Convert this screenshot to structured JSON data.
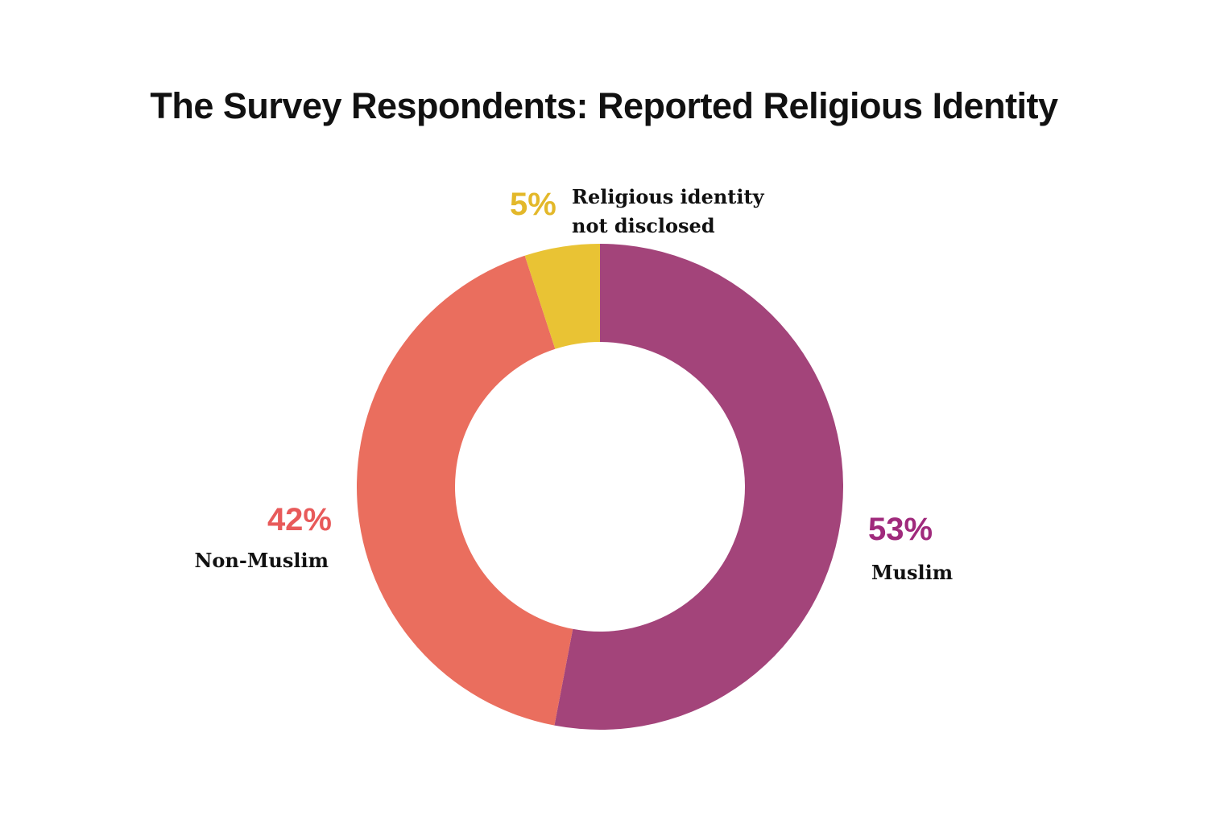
{
  "chart_data": {
    "type": "donut",
    "title": "The Survey Respondents: Reported Religious Identity",
    "categories": [
      "Muslim",
      "Non-Muslim",
      "Religious identity not disclosed"
    ],
    "values": [
      53,
      42,
      5
    ],
    "value_labels": [
      "53%",
      "42%",
      "5%"
    ],
    "colors": [
      "#a3447a",
      "#ea6e5e",
      "#e9c334"
    ],
    "label_colors": [
      "#a02a7c",
      "#e85a5a",
      "#e3b82a"
    ]
  }
}
